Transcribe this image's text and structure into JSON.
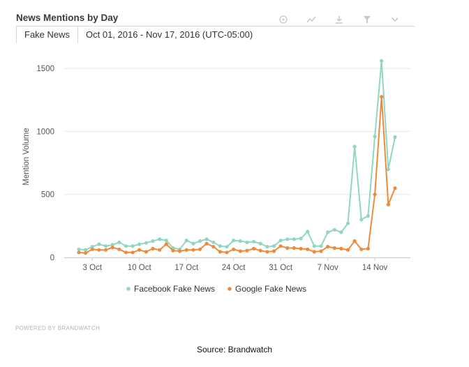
{
  "header": {
    "title": "News Mentions by Day",
    "tab_label": "Fake News",
    "date_range": "Oct 01, 2016 - Nov 17, 2016 (UTC-05:00)"
  },
  "toolbar": {
    "icons": [
      "help-icon",
      "trend-icon",
      "download-icon",
      "filter-icon",
      "chevron-down-icon"
    ]
  },
  "colors": {
    "facebook": "#8fd6c4",
    "google": "#ee8a3c",
    "grid": "#e9e9e9",
    "axis_text": "#555555",
    "icon": "#c8c8c8"
  },
  "footer": {
    "powered_by": "POWERED BY BRANDWATCH",
    "source": "Source: Brandwatch"
  },
  "chart_data": {
    "type": "line",
    "title": "News Mentions by Day",
    "xlabel": "",
    "ylabel": "Mention Volume",
    "ylim": [
      0,
      1600
    ],
    "yticks": [
      0,
      500,
      1000,
      1500
    ],
    "xticks": [
      "3 Oct",
      "10 Oct",
      "17 Oct",
      "24 Oct",
      "31 Oct",
      "7 Nov",
      "14 Nov"
    ],
    "x_start": "2016-10-01",
    "x_end": "2016-11-17",
    "legend_position": "bottom",
    "grid": true,
    "x": [
      "2016-10-01",
      "2016-10-02",
      "2016-10-03",
      "2016-10-04",
      "2016-10-05",
      "2016-10-06",
      "2016-10-07",
      "2016-10-08",
      "2016-10-09",
      "2016-10-10",
      "2016-10-11",
      "2016-10-12",
      "2016-10-13",
      "2016-10-14",
      "2016-10-15",
      "2016-10-16",
      "2016-10-17",
      "2016-10-18",
      "2016-10-19",
      "2016-10-20",
      "2016-10-21",
      "2016-10-22",
      "2016-10-23",
      "2016-10-24",
      "2016-10-25",
      "2016-10-26",
      "2016-10-27",
      "2016-10-28",
      "2016-10-29",
      "2016-10-30",
      "2016-10-31",
      "2016-11-01",
      "2016-11-02",
      "2016-11-03",
      "2016-11-04",
      "2016-11-05",
      "2016-11-06",
      "2016-11-07",
      "2016-11-08",
      "2016-11-09",
      "2016-11-10",
      "2016-11-11",
      "2016-11-12",
      "2016-11-13",
      "2016-11-14",
      "2016-11-15",
      "2016-11-16",
      "2016-11-17"
    ],
    "series": [
      {
        "name": "Facebook Fake News",
        "values": [
          65,
          60,
          85,
          105,
          90,
          100,
          120,
          90,
          90,
          105,
          115,
          130,
          145,
          135,
          75,
          65,
          135,
          110,
          130,
          145,
          120,
          90,
          85,
          135,
          130,
          120,
          125,
          110,
          85,
          90,
          135,
          145,
          145,
          150,
          205,
          90,
          90,
          200,
          220,
          200,
          270,
          880,
          300,
          330,
          960,
          1560,
          700,
          955
        ]
      },
      {
        "name": "Google Fake News",
        "values": [
          40,
          35,
          65,
          60,
          60,
          80,
          65,
          40,
          40,
          60,
          45,
          70,
          60,
          105,
          55,
          50,
          60,
          60,
          65,
          110,
          85,
          45,
          40,
          65,
          50,
          55,
          70,
          55,
          45,
          50,
          90,
          75,
          75,
          70,
          65,
          45,
          50,
          85,
          75,
          70,
          60,
          130,
          65,
          70,
          500,
          1275,
          420,
          550
        ]
      }
    ]
  }
}
